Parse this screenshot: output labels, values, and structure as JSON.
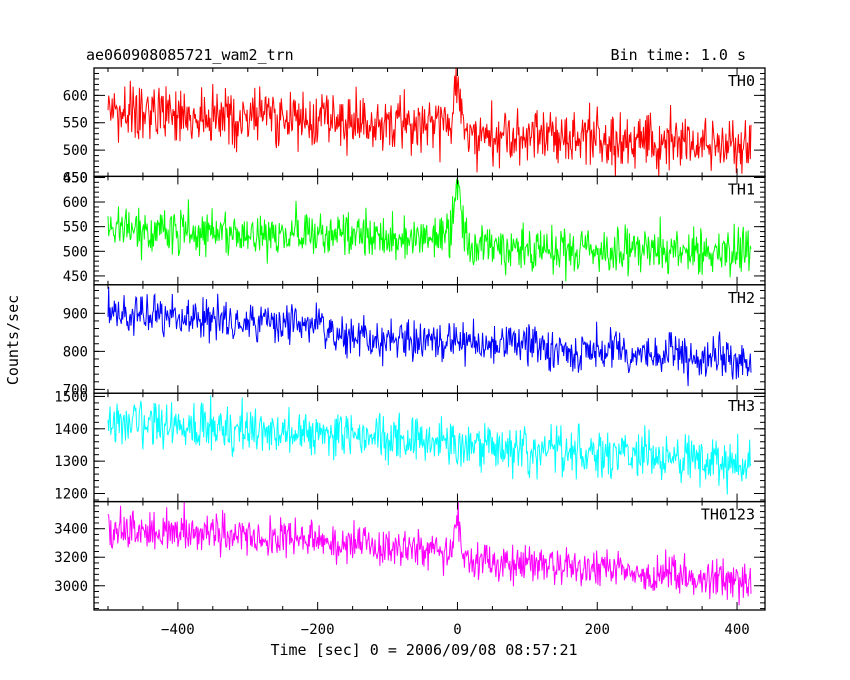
{
  "chart_data": {
    "type": "line",
    "title": "ae060908085721_wam2_trn",
    "subtitle": "Bin time: 1.0 s",
    "xlabel": "Time [sec] 0 = 2006/09/08 08:57:21",
    "ylabel": "Counts/sec",
    "xlim": [
      -520,
      440
    ],
    "x_ticks": [
      -400,
      -200,
      0,
      200,
      400
    ],
    "x_data_range": [
      -500,
      420
    ],
    "grid": false,
    "legend": "none",
    "panels": [
      {
        "name": "TH0",
        "color": "#ff0000",
        "ylim": [
          452,
          650
        ],
        "y_ticks": [
          450,
          500,
          550,
          600
        ],
        "trend": [
          [
            -500,
            568
          ],
          [
            -300,
            560
          ],
          [
            -50,
            550
          ],
          [
            0,
            560
          ],
          [
            20,
            530
          ],
          [
            420,
            508
          ]
        ],
        "noise": 26,
        "spike": {
          "x": 0,
          "width": 10,
          "peak": 640
        }
      },
      {
        "name": "TH1",
        "color": "#00ff00",
        "ylim": [
          432,
          652
        ],
        "y_ticks": [
          450,
          500,
          550,
          600,
          650
        ],
        "trend": [
          [
            -500,
            545
          ],
          [
            -50,
            530
          ],
          [
            0,
            535
          ],
          [
            20,
            510
          ],
          [
            420,
            497
          ]
        ],
        "noise": 23,
        "spike": {
          "x": 0,
          "width": 10,
          "peak": 648
        }
      },
      {
        "name": "TH2",
        "color": "#0000ff",
        "ylim": [
          690,
          975
        ],
        "y_ticks": [
          700,
          800,
          900
        ],
        "trend": [
          [
            -500,
            898
          ],
          [
            -300,
            880
          ],
          [
            -170,
            860
          ],
          [
            -160,
            835
          ],
          [
            0,
            825
          ],
          [
            420,
            772
          ]
        ],
        "noise": 28,
        "spike": null
      },
      {
        "name": "TH3",
        "color": "#00ffff",
        "ylim": [
          1175,
          1510
        ],
        "y_ticks": [
          1200,
          1300,
          1400,
          1500
        ],
        "trend": [
          [
            -500,
            1425
          ],
          [
            -200,
            1380
          ],
          [
            0,
            1355
          ],
          [
            420,
            1285
          ]
        ],
        "noise": 38,
        "spike": null
      },
      {
        "name": "TH0123",
        "color": "#ff00ff",
        "ylim": [
          2830,
          3590
        ],
        "y_ticks": [
          3000,
          3200,
          3400
        ],
        "trend": [
          [
            -500,
            3410
          ],
          [
            -200,
            3320
          ],
          [
            0,
            3240
          ],
          [
            20,
            3180
          ],
          [
            420,
            3030
          ]
        ],
        "noise": 70,
        "spike": {
          "x": 0,
          "width": 10,
          "peak": 3520
        }
      }
    ]
  }
}
